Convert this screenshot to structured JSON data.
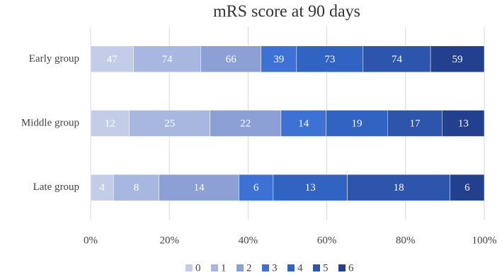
{
  "chart_data": {
    "type": "stacked_percent_bar",
    "orientation": "horizontal",
    "title": "mRS score at 90 days",
    "categories": [
      "Early group",
      "Middle group",
      "Late group"
    ],
    "series": [
      {
        "name": "0",
        "color": "#c3cde8",
        "values": [
          47,
          12,
          4
        ]
      },
      {
        "name": "1",
        "color": "#a8b7df",
        "values": [
          74,
          25,
          8
        ]
      },
      {
        "name": "2",
        "color": "#8ca0d5",
        "values": [
          66,
          22,
          14
        ]
      },
      {
        "name": "3",
        "color": "#3d72d4",
        "values": [
          39,
          14,
          6
        ]
      },
      {
        "name": "4",
        "color": "#3163c2",
        "values": [
          73,
          19,
          13
        ]
      },
      {
        "name": "5",
        "color": "#2c55ab",
        "values": [
          74,
          17,
          18
        ]
      },
      {
        "name": "6",
        "color": "#22408e",
        "values": [
          59,
          13,
          6
        ]
      }
    ],
    "xlim": [
      0,
      100
    ],
    "xticks": [
      {
        "value": 0,
        "label": "0%"
      },
      {
        "value": 20,
        "label": "20%"
      },
      {
        "value": 40,
        "label": "40%"
      },
      {
        "value": 60,
        "label": "60%"
      },
      {
        "value": 80,
        "label": "80%"
      },
      {
        "value": 100,
        "label": "100%"
      }
    ],
    "grid": true,
    "legend": "bottom"
  }
}
